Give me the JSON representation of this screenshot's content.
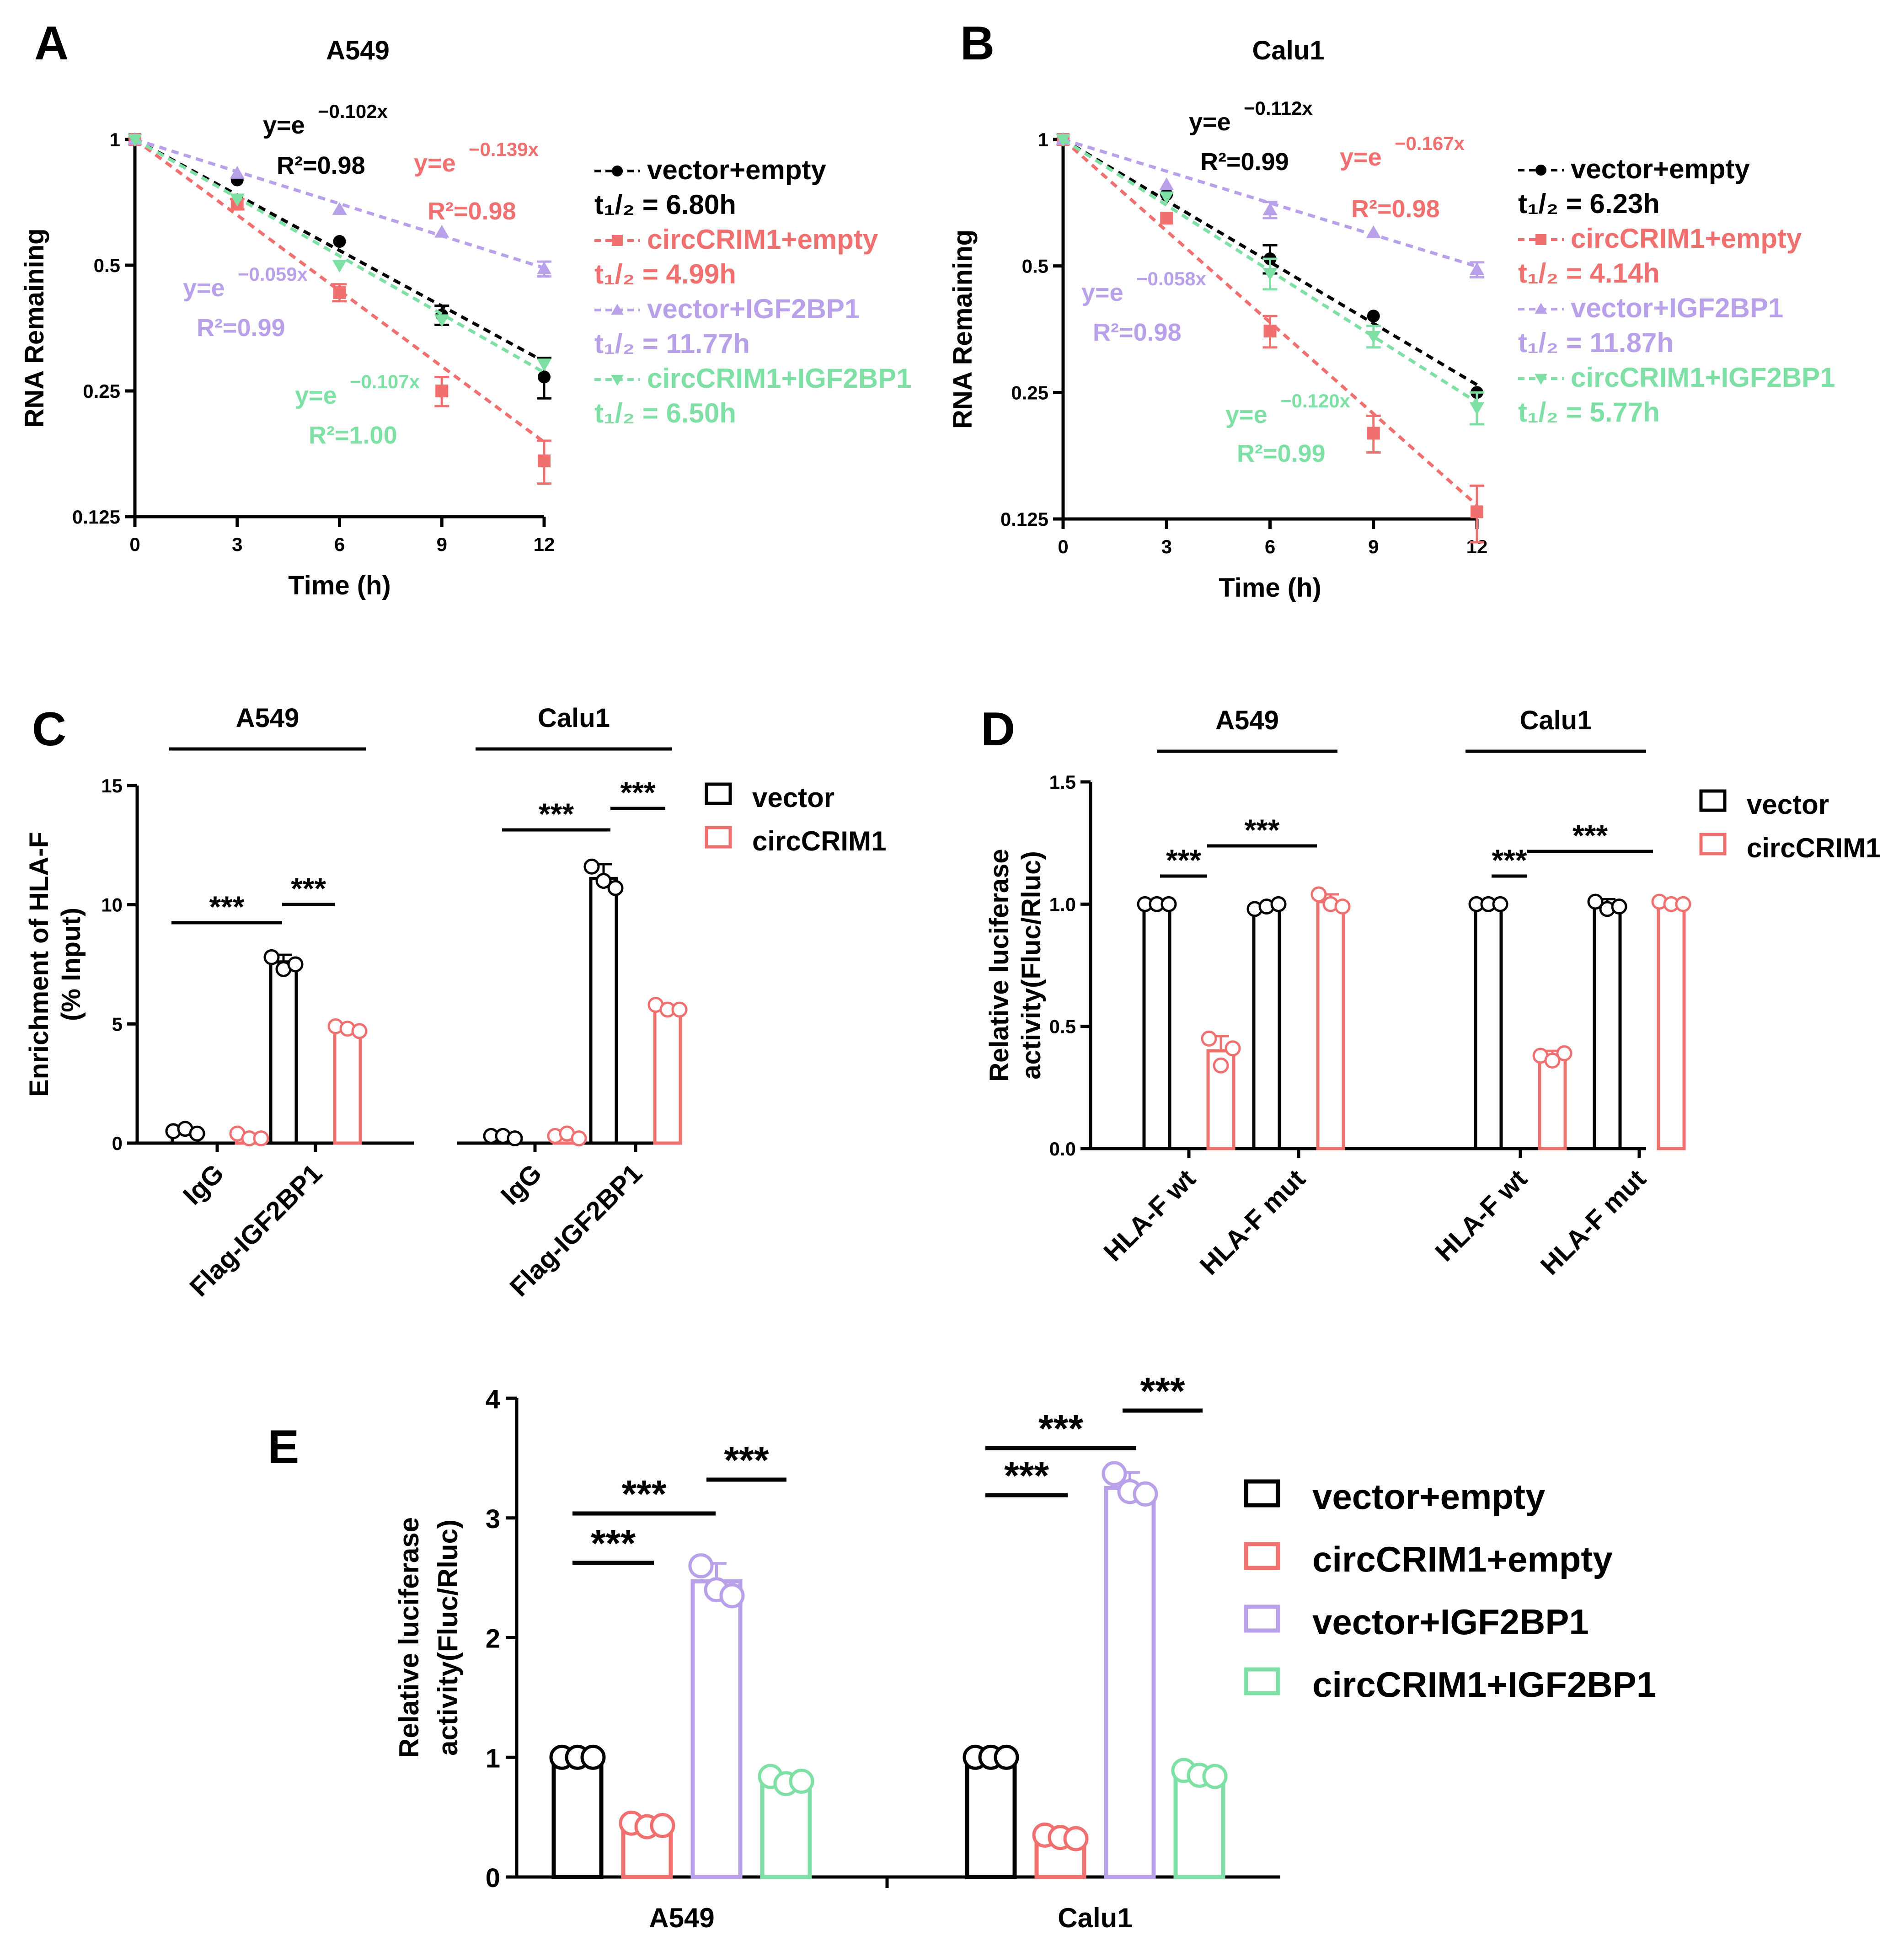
{
  "colors": {
    "black": "#000000",
    "red": "#f07070",
    "purple": "#b9a1ea",
    "green": "#7fe0a6"
  },
  "chart_data": [
    {
      "panel": "A",
      "type": "scatter",
      "title": "A549",
      "xlabel": "Time (h)",
      "ylabel": "RNA Remaining",
      "yscale": "log2",
      "xlim": [
        0,
        12
      ],
      "ylim": [
        0.125,
        1
      ],
      "xticks": [
        "0",
        "3",
        "6",
        "9",
        "12"
      ],
      "yticks": [
        "0.125",
        "0.25",
        "0.5",
        "1"
      ],
      "x": [
        0,
        3,
        6,
        9,
        12
      ],
      "series": [
        {
          "name": "vector+empty",
          "color": "#000000",
          "marker": "circle",
          "values": [
            1,
            0.8,
            0.57,
            0.38,
            0.27
          ],
          "err": [
            0,
            0,
            0,
            0.02,
            0.03
          ],
          "k": 0.102,
          "equation": "y=e",
          "exponent": "−0.102x",
          "r2": "R²=0.98",
          "half_life": "t₁/₂ = 6.80h"
        },
        {
          "name": "circCRIM1+empty",
          "color": "#f07070",
          "marker": "square",
          "values": [
            1,
            0.7,
            0.43,
            0.25,
            0.17
          ],
          "err": [
            0,
            0.02,
            0.02,
            0.02,
            0.02
          ],
          "k": 0.139,
          "equation": "y=e",
          "exponent": "−0.139x",
          "r2": "R²=0.98",
          "half_life": "t₁/₂ = 4.99h"
        },
        {
          "name": "vector+IGF2BP1",
          "color": "#b9a1ea",
          "marker": "triangle-up",
          "values": [
            1,
            0.83,
            0.68,
            0.6,
            0.49
          ],
          "err": [
            0,
            0,
            0,
            0,
            0.02
          ],
          "k": 0.059,
          "equation": "y=e",
          "exponent": "−0.059x",
          "r2": "R²=0.99",
          "half_life": "t₁/₂ = 11.77h"
        },
        {
          "name": "circCRIM1+IGF2BP1",
          "color": "#7fe0a6",
          "marker": "triangle-down",
          "values": [
            1,
            0.72,
            0.5,
            0.37,
            0.29
          ],
          "err": [
            0,
            0,
            0,
            0,
            0
          ],
          "k": 0.107,
          "equation": "y=e",
          "exponent": "−0.107x",
          "r2": "R²=1.00",
          "half_life": "t₁/₂ = 6.50h"
        }
      ]
    },
    {
      "panel": "B",
      "type": "scatter",
      "title": "Calu1",
      "xlabel": "Time (h)",
      "ylabel": "RNA Remaining",
      "yscale": "log2",
      "xlim": [
        0,
        12
      ],
      "ylim": [
        0.125,
        1
      ],
      "xticks": [
        "0",
        "3",
        "6",
        "9",
        "12"
      ],
      "yticks": [
        "0.125",
        "0.25",
        "0.5",
        "1"
      ],
      "x": [
        0,
        3,
        6,
        9,
        12
      ],
      "series": [
        {
          "name": "vector+empty",
          "color": "#000000",
          "marker": "circle",
          "values": [
            1,
            0.74,
            0.52,
            0.38,
            0.25
          ],
          "err": [
            0,
            0,
            0.04,
            0,
            0
          ],
          "k": 0.112,
          "equation": "y=e",
          "exponent": "−0.112x",
          "r2": "R²=0.99",
          "half_life": "t₁/₂ = 6.23h"
        },
        {
          "name": "circCRIM1+empty",
          "color": "#f07070",
          "marker": "square",
          "values": [
            1,
            0.65,
            0.35,
            0.2,
            0.13
          ],
          "err": [
            0,
            0,
            0.03,
            0.02,
            0.02
          ],
          "k": 0.167,
          "equation": "y=e",
          "exponent": "−0.167x",
          "r2": "R²=0.98",
          "half_life": "t₁/₂ = 4.14h"
        },
        {
          "name": "vector+IGF2BP1",
          "color": "#b9a1ea",
          "marker": "triangle-up",
          "values": [
            1,
            0.78,
            0.68,
            0.6,
            0.49
          ],
          "err": [
            0,
            0,
            0.03,
            0,
            0.02
          ],
          "k": 0.058,
          "equation": "y=e",
          "exponent": "−0.058x",
          "r2": "R²=0.98",
          "half_life": "t₁/₂ = 11.87h"
        },
        {
          "name": "circCRIM1+IGF2BP1",
          "color": "#7fe0a6",
          "marker": "triangle-down",
          "values": [
            1,
            0.73,
            0.48,
            0.34,
            0.23
          ],
          "err": [
            0,
            0,
            0.04,
            0.02,
            0.02
          ],
          "k": 0.12,
          "equation": "y=e",
          "exponent": "−0.120x",
          "r2": "R²=0.99",
          "half_life": "t₁/₂ = 5.77h"
        }
      ]
    },
    {
      "panel": "C",
      "type": "bar",
      "xlabel": "",
      "ylabel": "Enrichment of HLA-F",
      "ylabel2": "(% Input)",
      "ylim": [
        0,
        15
      ],
      "yticks": [
        "0",
        "5",
        "10",
        "15"
      ],
      "groups": [
        "A549",
        "Calu1"
      ],
      "categories": [
        "IgG",
        "Flag-IGF2BP1"
      ],
      "series": [
        {
          "name": "vector",
          "color": "#000000",
          "values": [
            [
              0.5,
              7.6
            ],
            [
              0.3,
              11.1
            ]
          ],
          "points": [
            [
              [
                0.5,
                0.6,
                0.4
              ],
              [
                7.8,
                7.3,
                7.5
              ]
            ],
            [
              [
                0.3,
                0.3,
                0.2
              ],
              [
                11.6,
                11.0,
                10.7
              ]
            ]
          ],
          "err": [
            [
              0.1,
              0.3
            ],
            [
              0.05,
              0.6
            ]
          ]
        },
        {
          "name": "circCRIM1",
          "color": "#f07070",
          "values": [
            [
              0.3,
              4.8
            ],
            [
              0.3,
              5.7
            ]
          ],
          "points": [
            [
              [
                0.4,
                0.2,
                0.2
              ],
              [
                4.9,
                4.8,
                4.7
              ]
            ],
            [
              [
                0.3,
                0.4,
                0.2
              ],
              [
                5.8,
                5.6,
                5.6
              ]
            ]
          ],
          "err": [
            [
              0.1,
              0.1
            ],
            [
              0.1,
              0.1
            ]
          ]
        }
      ],
      "significance": [
        "***",
        "***",
        "***",
        "***"
      ]
    },
    {
      "panel": "D",
      "type": "bar",
      "xlabel": "",
      "ylabel": "Relative luciferase",
      "ylabel2": "activity(Fluc/Rluc)",
      "ylim": [
        0,
        1.5
      ],
      "yticks": [
        "0.0",
        "0.5",
        "1.0",
        "1.5"
      ],
      "groups": [
        "A549",
        "Calu1"
      ],
      "categories": [
        "HLA-F wt",
        "HLA-F mut"
      ],
      "series": [
        {
          "name": "vector",
          "color": "#000000",
          "values": [
            [
              1.0,
              0.99
            ],
            [
              1.0,
              0.99
            ]
          ],
          "points": [
            [
              [
                1.0,
                1.0,
                1.0
              ],
              [
                0.98,
                0.99,
                1.0
              ]
            ],
            [
              [
                1.0,
                1.0,
                1.0
              ],
              [
                1.01,
                0.98,
                0.99
              ]
            ]
          ],
          "err": [
            [
              0.005,
              0.01
            ],
            [
              0.005,
              0.03
            ]
          ]
        },
        {
          "name": "circCRIM1",
          "color": "#f07070",
          "values": [
            [
              0.4,
              1.01
            ],
            [
              0.38,
              1.0
            ]
          ],
          "points": [
            [
              [
                0.45,
                0.34,
                0.41
              ],
              [
                1.04,
                1.0,
                0.99
              ]
            ],
            [
              [
                0.38,
                0.36,
                0.39
              ],
              [
                1.01,
                1.0,
                1.0
              ]
            ]
          ],
          "err": [
            [
              0.06,
              0.03
            ],
            [
              0.02,
              0.01
            ]
          ]
        }
      ],
      "significance": [
        "***",
        "***",
        "***",
        "***"
      ]
    },
    {
      "panel": "E",
      "type": "bar",
      "xlabel": "",
      "ylabel": "Relative luciferase",
      "ylabel2": "activity(Fluc/Rluc)",
      "ylim": [
        0,
        4
      ],
      "yticks": [
        "0",
        "1",
        "2",
        "3",
        "4"
      ],
      "categories": [
        "A549",
        "Calu1"
      ],
      "series": [
        {
          "name": "vector+empty",
          "color": "#000000",
          "values": [
            1.0,
            1.0
          ],
          "points": [
            [
              1.0,
              1.0,
              1.0
            ],
            [
              1.0,
              1.0,
              1.0
            ]
          ],
          "err": [
            0,
            0
          ]
        },
        {
          "name": "circCRIM1+empty",
          "color": "#f07070",
          "values": [
            0.43,
            0.33
          ],
          "points": [
            [
              0.45,
              0.42,
              0.43
            ],
            [
              0.35,
              0.33,
              0.32
            ]
          ],
          "err": [
            0.02,
            0.02
          ]
        },
        {
          "name": "vector+IGF2BP1",
          "color": "#b9a1ea",
          "values": [
            2.47,
            3.25
          ],
          "points": [
            [
              2.6,
              2.4,
              2.35
            ],
            [
              3.37,
              3.22,
              3.2
            ]
          ],
          "err": [
            0.15,
            0.13
          ]
        },
        {
          "name": "circCRIM1+IGF2BP1",
          "color": "#7fe0a6",
          "values": [
            0.8,
            0.86
          ],
          "points": [
            [
              0.84,
              0.78,
              0.8
            ],
            [
              0.89,
              0.85,
              0.84
            ]
          ],
          "err": [
            0.03,
            0.03
          ]
        }
      ],
      "significance": [
        "***",
        "***",
        "***",
        "***",
        "***",
        "***"
      ]
    }
  ]
}
